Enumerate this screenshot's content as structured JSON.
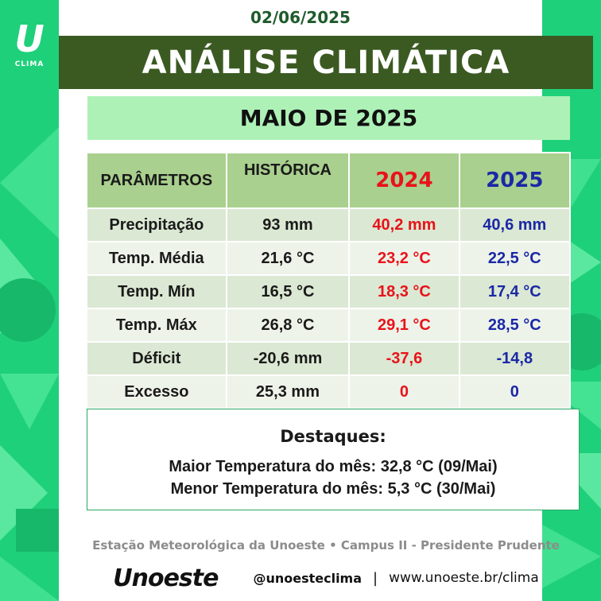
{
  "logo": {
    "letter": "U",
    "text": "CLIMA"
  },
  "date": "02/06/2025",
  "title": "ANÁLISE CLIMÁTICA",
  "month": "MAIO DE 2025",
  "table": {
    "headers": [
      "PARÂMETROS",
      "HISTÓRICA",
      "2024",
      "2025"
    ],
    "rows": [
      [
        "Precipitação",
        "93 mm",
        "40,2 mm",
        "40,6 mm"
      ],
      [
        "Temp. Média",
        "21,6 °C",
        "23,2 °C",
        "22,5 °C"
      ],
      [
        "Temp. Mín",
        "16,5 °C",
        "18,3 °C",
        "17,4 °C"
      ],
      [
        "Temp. Máx",
        "26,8 °C",
        "29,1 °C",
        "28,5 °C"
      ],
      [
        "Déficit",
        "-20,6 mm",
        "-37,6",
        "-14,8"
      ],
      [
        "Excesso",
        "25,3 mm",
        "0",
        "0"
      ]
    ]
  },
  "highlights": {
    "header": "Destaques:",
    "line1": "Maior Temperatura do mês:  32,8 °C (09/Mai)",
    "line2": "Menor Temperatura do mês: 5,3 °C (30/Mai)"
  },
  "footer": {
    "station": "Estação Meteorológica da Unoeste • Campus II - Presidente Prudente",
    "brand": "Unoeste",
    "handle": "@unoesteclima",
    "separator": "|",
    "website": "www.unoeste.br/clima"
  },
  "colors": {
    "side_green": "#1fd07a",
    "title_bg": "#3b5a22",
    "month_bg": "#aef1b7",
    "header_bg": "#a9d08e",
    "red_2024": "#e8131a",
    "blue_2025": "#1b28a6"
  }
}
